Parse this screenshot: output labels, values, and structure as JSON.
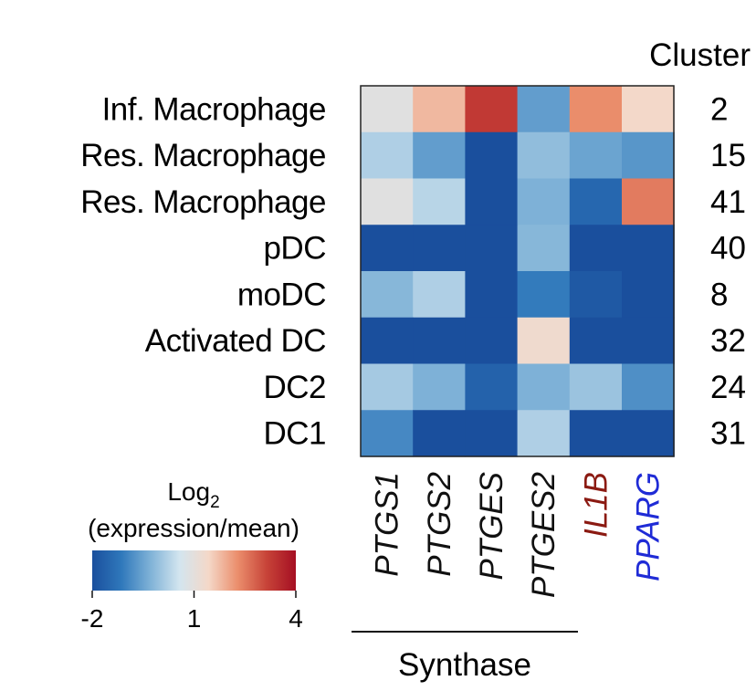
{
  "chart_data": {
    "type": "heatmap",
    "title": "",
    "row_labels": [
      "Inf. Macrophage",
      "Res. Macrophage",
      "Res. Macrophage",
      "pDC",
      "moDC",
      "Activated DC",
      "DC2",
      "DC1"
    ],
    "column_labels": [
      "PTGS1",
      "PTGS2",
      "PTGES",
      "PTGES2",
      "IL1B",
      "PPARG"
    ],
    "column_label_colors": [
      "#111111",
      "#111111",
      "#111111",
      "#111111",
      "#8b1a12",
      "#1f2bd6"
    ],
    "cluster_header": "Cluster",
    "clusters": [
      "2",
      "15",
      "41",
      "40",
      "8",
      "32",
      "24",
      "31"
    ],
    "values": [
      [
        0.9,
        1.8,
        3.3,
        -0.6,
        2.3,
        1.4
      ],
      [
        0.2,
        -0.6,
        -2.0,
        -0.1,
        -0.5,
        -0.7
      ],
      [
        0.9,
        0.3,
        -2.0,
        -0.3,
        -1.5,
        2.5
      ],
      [
        -2.0,
        -2.0,
        -2.0,
        -0.2,
        -2.0,
        -2.0
      ],
      [
        -0.2,
        0.2,
        -2.0,
        -1.1,
        -1.8,
        -2.0
      ],
      [
        -2.0,
        -2.0,
        -2.0,
        1.3,
        -2.0,
        -2.0
      ],
      [
        0.1,
        -0.3,
        -1.6,
        -0.3,
        0.0,
        -0.8
      ],
      [
        -0.9,
        -2.0,
        -2.0,
        0.2,
        -2.0,
        -2.0
      ]
    ],
    "group_label": "Synthase",
    "colorbar": {
      "title": "Log",
      "title_subscript": "2",
      "subtitle": "(expression/mean)",
      "min": -2,
      "center": 1,
      "max": 4,
      "ticks": [
        "-2",
        "1",
        "4"
      ],
      "colors": [
        "#1a4f9d",
        "#2f78bb",
        "#7fb2d7",
        "#d3e5ef",
        "#f4d8c8",
        "#eb8e6c",
        "#c74338",
        "#a50f23"
      ]
    }
  }
}
